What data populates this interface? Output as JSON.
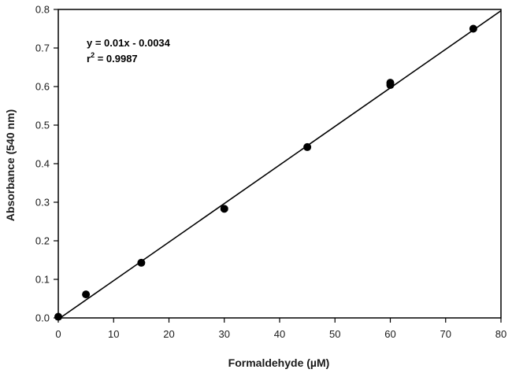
{
  "chart_data": {
    "type": "scatter",
    "title": "",
    "xlabel": "Formaldehyde (µM)",
    "ylabel": "Absorbance (540 nm)",
    "xlim": [
      0,
      80
    ],
    "ylim": [
      0,
      0.8
    ],
    "x_ticks": [
      "0",
      "10",
      "20",
      "30",
      "40",
      "50",
      "60",
      "70",
      "80"
    ],
    "y_ticks": [
      "0.0",
      "0.1",
      "0.2",
      "0.3",
      "0.4",
      "0.5",
      "0.6",
      "0.7",
      "0.8"
    ],
    "grid": false,
    "series": [
      {
        "x": [
          0,
          5,
          15,
          30,
          45,
          60,
          60,
          75
        ],
        "y": [
          0.003,
          0.061,
          0.143,
          0.283,
          0.443,
          0.61,
          0.604,
          0.75
        ]
      }
    ],
    "fit_line": {
      "slope": 0.01,
      "intercept": -0.0034,
      "x_range": [
        0,
        80
      ]
    },
    "annotations": {
      "equation": "y = 0.01x - 0.0034",
      "r_label": "r",
      "r_superscript": "2",
      "r_value": " = 0.9987"
    },
    "colors": {
      "points": "#000000",
      "line": "#000000",
      "axis": "#000000"
    }
  }
}
